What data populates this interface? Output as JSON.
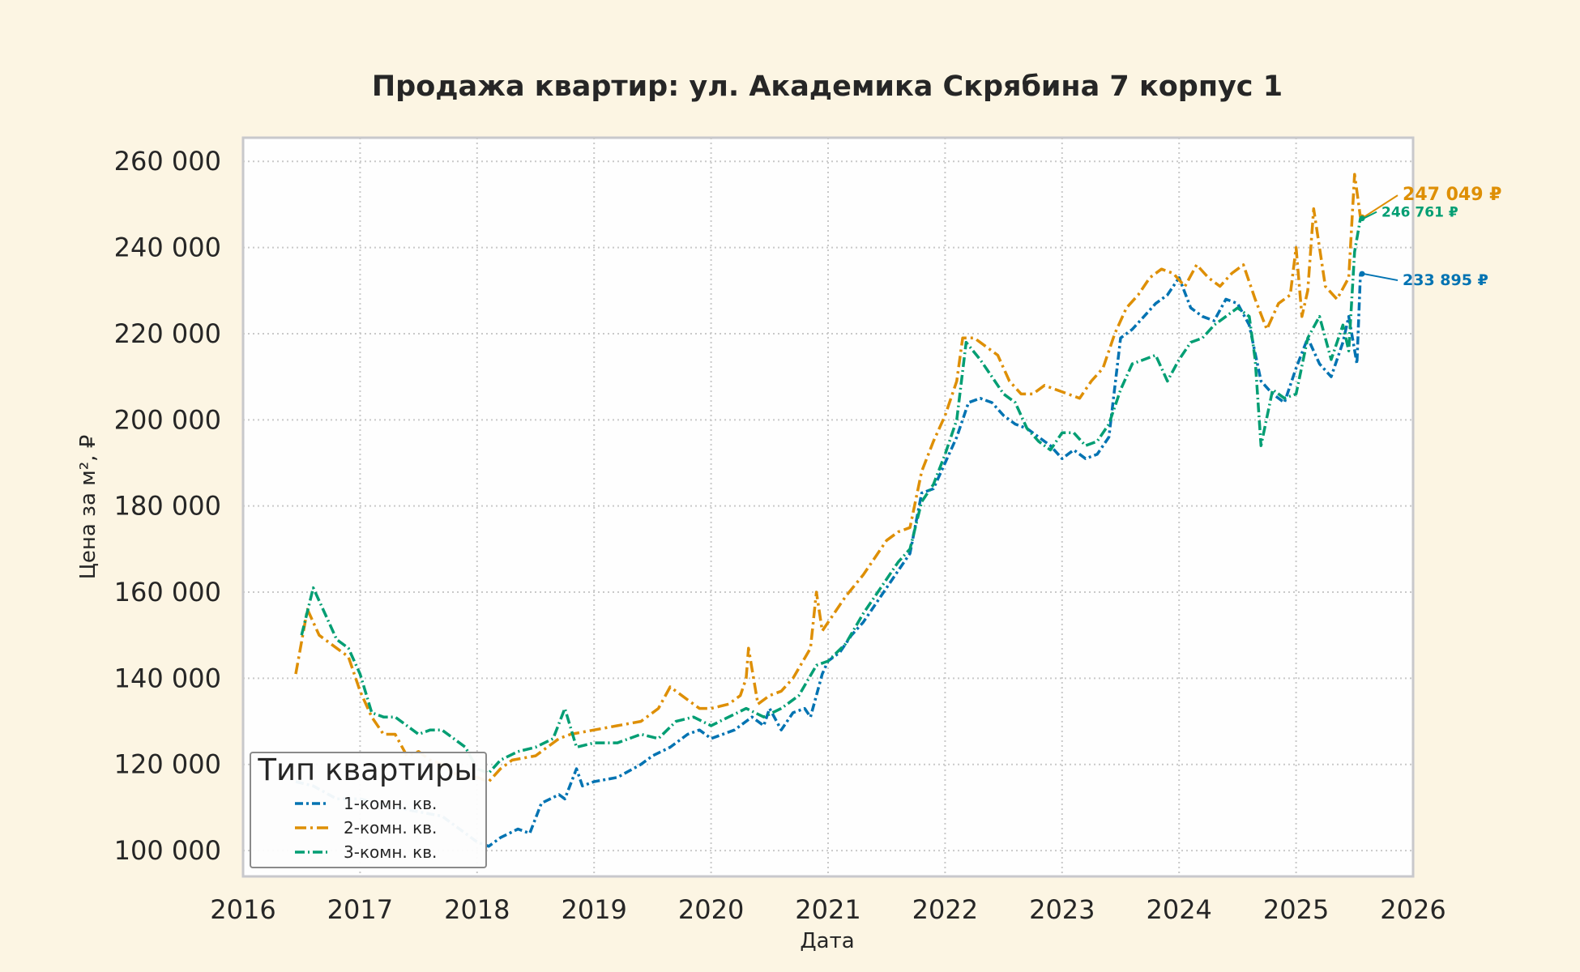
{
  "chart_data": {
    "type": "line",
    "title": "Продажа квартир: ул. Академика Скрябина 7 корпус 1",
    "xlabel": "Дата",
    "ylabel": "Цена за м², ₽",
    "xlim": [
      2016.0,
      2026.0
    ],
    "ylim": [
      94000,
      265500
    ],
    "x_ticks": [
      "2016",
      "2017",
      "2018",
      "2019",
      "2020",
      "2021",
      "2022",
      "2023",
      "2024",
      "2025",
      "2026"
    ],
    "y_ticks": [
      "100 000",
      "120 000",
      "140 000",
      "160 000",
      "180 000",
      "200 000",
      "220 000",
      "240 000",
      "260 000"
    ],
    "grid": true,
    "legend": {
      "title": "Тип квартиры",
      "position": "bottom-left"
    },
    "series": [
      {
        "name": "1-комн. кв.",
        "color": "#0173b2",
        "end_label": "233 895 ₽",
        "points": [
          [
            2016.45,
            116000
          ],
          [
            2016.6,
            115000
          ],
          [
            2016.8,
            112000
          ],
          [
            2017.0,
            112000
          ],
          [
            2017.3,
            110000
          ],
          [
            2017.5,
            109000
          ],
          [
            2017.7,
            108000
          ],
          [
            2017.9,
            104000
          ],
          [
            2018.0,
            102000
          ],
          [
            2018.1,
            101000
          ],
          [
            2018.2,
            103000
          ],
          [
            2018.35,
            105000
          ],
          [
            2018.45,
            104000
          ],
          [
            2018.55,
            111000
          ],
          [
            2018.7,
            113000
          ],
          [
            2018.75,
            112000
          ],
          [
            2018.85,
            119000
          ],
          [
            2018.9,
            115000
          ],
          [
            2019.0,
            116000
          ],
          [
            2019.2,
            117000
          ],
          [
            2019.4,
            120000
          ],
          [
            2019.5,
            122000
          ],
          [
            2019.65,
            124000
          ],
          [
            2019.8,
            127000
          ],
          [
            2019.9,
            128000
          ],
          [
            2020.0,
            126000
          ],
          [
            2020.2,
            128000
          ],
          [
            2020.35,
            131000
          ],
          [
            2020.45,
            129000
          ],
          [
            2020.5,
            133000
          ],
          [
            2020.6,
            128000
          ],
          [
            2020.7,
            132000
          ],
          [
            2020.8,
            133000
          ],
          [
            2020.85,
            131000
          ],
          [
            2020.95,
            141000
          ],
          [
            2021.0,
            144000
          ],
          [
            2021.1,
            146000
          ],
          [
            2021.2,
            150000
          ],
          [
            2021.3,
            153000
          ],
          [
            2021.4,
            157000
          ],
          [
            2021.5,
            161000
          ],
          [
            2021.6,
            165000
          ],
          [
            2021.7,
            169000
          ],
          [
            2021.8,
            183000
          ],
          [
            2021.9,
            184000
          ],
          [
            2022.0,
            190000
          ],
          [
            2022.1,
            196000
          ],
          [
            2022.2,
            204000
          ],
          [
            2022.3,
            205000
          ],
          [
            2022.4,
            204000
          ],
          [
            2022.5,
            201000
          ],
          [
            2022.6,
            199000
          ],
          [
            2022.7,
            198000
          ],
          [
            2022.8,
            196000
          ],
          [
            2022.9,
            194000
          ],
          [
            2023.0,
            191000
          ],
          [
            2023.1,
            193000
          ],
          [
            2023.2,
            191000
          ],
          [
            2023.3,
            192000
          ],
          [
            2023.4,
            196000
          ],
          [
            2023.5,
            219000
          ],
          [
            2023.6,
            221000
          ],
          [
            2023.7,
            224000
          ],
          [
            2023.8,
            227000
          ],
          [
            2023.9,
            229000
          ],
          [
            2024.0,
            233000
          ],
          [
            2024.1,
            226000
          ],
          [
            2024.2,
            224000
          ],
          [
            2024.3,
            223000
          ],
          [
            2024.4,
            228000
          ],
          [
            2024.5,
            227000
          ],
          [
            2024.6,
            222000
          ],
          [
            2024.7,
            209000
          ],
          [
            2024.8,
            206000
          ],
          [
            2024.9,
            204000
          ],
          [
            2025.0,
            212000
          ],
          [
            2025.1,
            219000
          ],
          [
            2025.2,
            213000
          ],
          [
            2025.3,
            210000
          ],
          [
            2025.4,
            218000
          ],
          [
            2025.45,
            224000
          ],
          [
            2025.52,
            213000
          ],
          [
            2025.55,
            233895
          ]
        ]
      },
      {
        "name": "2-комн. кв.",
        "color": "#de8f05",
        "end_label": "247 049 ₽",
        "points": [
          [
            2016.45,
            141000
          ],
          [
            2016.55,
            156000
          ],
          [
            2016.65,
            150000
          ],
          [
            2016.8,
            147000
          ],
          [
            2016.9,
            145000
          ],
          [
            2017.0,
            137000
          ],
          [
            2017.1,
            131000
          ],
          [
            2017.2,
            127000
          ],
          [
            2017.3,
            127000
          ],
          [
            2017.4,
            122000
          ],
          [
            2017.5,
            123000
          ],
          [
            2017.6,
            121000
          ],
          [
            2017.7,
            120000
          ],
          [
            2017.8,
            118000
          ],
          [
            2017.9,
            117000
          ],
          [
            2018.0,
            117000
          ],
          [
            2018.1,
            116000
          ],
          [
            2018.2,
            119000
          ],
          [
            2018.3,
            121000
          ],
          [
            2018.5,
            122000
          ],
          [
            2018.7,
            126000
          ],
          [
            2018.8,
            127000
          ],
          [
            2019.0,
            128000
          ],
          [
            2019.2,
            129000
          ],
          [
            2019.4,
            130000
          ],
          [
            2019.55,
            133000
          ],
          [
            2019.65,
            138000
          ],
          [
            2019.8,
            135000
          ],
          [
            2019.9,
            133000
          ],
          [
            2020.0,
            133000
          ],
          [
            2020.15,
            134000
          ],
          [
            2020.25,
            136000
          ],
          [
            2020.3,
            140000
          ],
          [
            2020.32,
            147000
          ],
          [
            2020.4,
            134000
          ],
          [
            2020.5,
            136000
          ],
          [
            2020.6,
            137000
          ],
          [
            2020.7,
            140000
          ],
          [
            2020.85,
            147000
          ],
          [
            2020.9,
            160000
          ],
          [
            2020.95,
            151000
          ],
          [
            2021.0,
            153000
          ],
          [
            2021.15,
            159000
          ],
          [
            2021.3,
            164000
          ],
          [
            2021.4,
            168000
          ],
          [
            2021.5,
            172000
          ],
          [
            2021.6,
            174000
          ],
          [
            2021.7,
            175000
          ],
          [
            2021.8,
            188000
          ],
          [
            2021.9,
            195000
          ],
          [
            2022.0,
            201000
          ],
          [
            2022.1,
            209000
          ],
          [
            2022.15,
            219000
          ],
          [
            2022.25,
            219000
          ],
          [
            2022.35,
            217000
          ],
          [
            2022.45,
            215000
          ],
          [
            2022.55,
            209000
          ],
          [
            2022.65,
            206000
          ],
          [
            2022.75,
            206000
          ],
          [
            2022.85,
            208000
          ],
          [
            2022.95,
            207000
          ],
          [
            2023.05,
            206000
          ],
          [
            2023.15,
            205000
          ],
          [
            2023.25,
            209000
          ],
          [
            2023.35,
            212000
          ],
          [
            2023.45,
            220000
          ],
          [
            2023.55,
            226000
          ],
          [
            2023.65,
            229000
          ],
          [
            2023.75,
            233000
          ],
          [
            2023.85,
            235000
          ],
          [
            2023.95,
            234000
          ],
          [
            2024.05,
            231000
          ],
          [
            2024.15,
            236000
          ],
          [
            2024.25,
            233000
          ],
          [
            2024.35,
            231000
          ],
          [
            2024.45,
            234000
          ],
          [
            2024.55,
            236000
          ],
          [
            2024.65,
            228000
          ],
          [
            2024.75,
            221000
          ],
          [
            2024.85,
            227000
          ],
          [
            2024.95,
            229000
          ],
          [
            2025.0,
            240000
          ],
          [
            2025.05,
            224000
          ],
          [
            2025.1,
            230000
          ],
          [
            2025.15,
            249000
          ],
          [
            2025.25,
            231000
          ],
          [
            2025.35,
            228000
          ],
          [
            2025.45,
            233000
          ],
          [
            2025.5,
            257000
          ],
          [
            2025.55,
            247049
          ]
        ]
      },
      {
        "name": "3-комн. кв.",
        "color": "#029e73",
        "end_label": "246 761 ₽",
        "points": [
          [
            2016.5,
            150000
          ],
          [
            2016.6,
            161000
          ],
          [
            2016.7,
            155000
          ],
          [
            2016.8,
            149000
          ],
          [
            2016.9,
            147000
          ],
          [
            2017.0,
            141000
          ],
          [
            2017.1,
            132000
          ],
          [
            2017.2,
            131000
          ],
          [
            2017.3,
            131000
          ],
          [
            2017.4,
            129000
          ],
          [
            2017.5,
            127000
          ],
          [
            2017.6,
            128000
          ],
          [
            2017.7,
            128000
          ],
          [
            2017.8,
            126000
          ],
          [
            2017.9,
            124000
          ],
          [
            2018.0,
            119000
          ],
          [
            2018.1,
            118000
          ],
          [
            2018.2,
            121000
          ],
          [
            2018.35,
            123000
          ],
          [
            2018.5,
            124000
          ],
          [
            2018.65,
            126000
          ],
          [
            2018.75,
            133000
          ],
          [
            2018.85,
            124000
          ],
          [
            2019.0,
            125000
          ],
          [
            2019.2,
            125000
          ],
          [
            2019.4,
            127000
          ],
          [
            2019.55,
            126000
          ],
          [
            2019.7,
            130000
          ],
          [
            2019.85,
            131000
          ],
          [
            2020.0,
            129000
          ],
          [
            2020.15,
            131000
          ],
          [
            2020.3,
            133000
          ],
          [
            2020.45,
            131000
          ],
          [
            2020.6,
            133000
          ],
          [
            2020.75,
            136000
          ],
          [
            2020.9,
            143000
          ],
          [
            2021.0,
            144000
          ],
          [
            2021.15,
            148000
          ],
          [
            2021.3,
            155000
          ],
          [
            2021.45,
            161000
          ],
          [
            2021.6,
            167000
          ],
          [
            2021.7,
            170000
          ],
          [
            2021.8,
            181000
          ],
          [
            2021.9,
            185000
          ],
          [
            2022.0,
            192000
          ],
          [
            2022.1,
            200000
          ],
          [
            2022.18,
            218000
          ],
          [
            2022.3,
            214000
          ],
          [
            2022.4,
            210000
          ],
          [
            2022.5,
            206000
          ],
          [
            2022.6,
            204000
          ],
          [
            2022.7,
            198000
          ],
          [
            2022.8,
            195000
          ],
          [
            2022.9,
            193000
          ],
          [
            2023.0,
            197000
          ],
          [
            2023.1,
            197000
          ],
          [
            2023.2,
            194000
          ],
          [
            2023.3,
            195000
          ],
          [
            2023.4,
            199000
          ],
          [
            2023.5,
            207000
          ],
          [
            2023.6,
            213000
          ],
          [
            2023.7,
            214000
          ],
          [
            2023.8,
            215000
          ],
          [
            2023.9,
            209000
          ],
          [
            2024.0,
            214000
          ],
          [
            2024.1,
            218000
          ],
          [
            2024.2,
            219000
          ],
          [
            2024.3,
            222000
          ],
          [
            2024.4,
            224000
          ],
          [
            2024.5,
            226000
          ],
          [
            2024.6,
            224000
          ],
          [
            2024.65,
            214000
          ],
          [
            2024.7,
            194000
          ],
          [
            2024.8,
            207000
          ],
          [
            2024.9,
            205000
          ],
          [
            2025.0,
            206000
          ],
          [
            2025.1,
            219000
          ],
          [
            2025.2,
            224000
          ],
          [
            2025.3,
            214000
          ],
          [
            2025.4,
            222000
          ],
          [
            2025.45,
            216000
          ],
          [
            2025.5,
            239000
          ],
          [
            2025.55,
            246761
          ]
        ]
      }
    ]
  }
}
